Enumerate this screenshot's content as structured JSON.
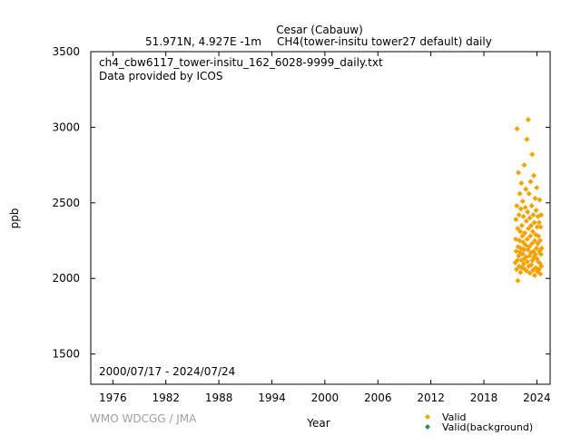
{
  "header": {
    "site_name": "Cesar (Cabauw)",
    "location": "51.971N, 4.927E -1m",
    "description": "CH4(tower-insitu tower27 default) daily"
  },
  "annotations": {
    "filename": "ch4_cbw6117_tower-insitu_162_6028-9999_daily.txt",
    "provider": "Data provided by ICOS",
    "period": "2000/07/17 - 2024/07/24"
  },
  "credit": "WMO WDCGG / JMA",
  "colors": {
    "valid": "#f5a100",
    "valid_background": "#2e8b57",
    "axis": "#000000"
  },
  "chart_data": {
    "type": "scatter",
    "xlabel": "Year",
    "ylabel": "ppb",
    "xlim": [
      1973.5,
      2025.5
    ],
    "ylim": [
      1300,
      3500
    ],
    "x_ticks": [
      1976,
      1982,
      1988,
      1994,
      2000,
      2006,
      2012,
      2018,
      2024
    ],
    "y_ticks": [
      1500,
      2000,
      2500,
      3000,
      3500
    ],
    "grid": false,
    "legend_position": "bottom-right",
    "series": [
      {
        "name": "Valid",
        "marker": "diamond",
        "points": [
          [
            2021.55,
            2105
          ],
          [
            2021.6,
            2260
          ],
          [
            2021.63,
            2390
          ],
          [
            2021.66,
            2180
          ],
          [
            2021.7,
            2060
          ],
          [
            2021.73,
            2480
          ],
          [
            2021.76,
            2990
          ],
          [
            2021.79,
            2120
          ],
          [
            2021.82,
            2330
          ],
          [
            2021.85,
            1985
          ],
          [
            2021.88,
            2210
          ],
          [
            2021.91,
            2700
          ],
          [
            2021.94,
            2150
          ],
          [
            2021.97,
            2420
          ],
          [
            2022.0,
            2080
          ],
          [
            2022.03,
            2250
          ],
          [
            2022.06,
            2560
          ],
          [
            2022.09,
            2175
          ],
          [
            2022.12,
            2310
          ],
          [
            2022.15,
            2040
          ],
          [
            2022.18,
            2460
          ],
          [
            2022.21,
            2200
          ],
          [
            2022.24,
            2630
          ],
          [
            2022.27,
            2120
          ],
          [
            2022.3,
            2350
          ],
          [
            2022.33,
            2070
          ],
          [
            2022.36,
            2280
          ],
          [
            2022.39,
            2510
          ],
          [
            2022.42,
            2160
          ],
          [
            2022.45,
            2240
          ],
          [
            2022.48,
            2410
          ],
          [
            2022.51,
            2095
          ],
          [
            2022.54,
            2190
          ],
          [
            2022.57,
            2750
          ],
          [
            2022.6,
            2130
          ],
          [
            2022.63,
            2300
          ],
          [
            2022.66,
            2060
          ],
          [
            2022.69,
            2470
          ],
          [
            2022.72,
            2220
          ],
          [
            2022.75,
            2590
          ],
          [
            2022.78,
            2140
          ],
          [
            2022.81,
            2380
          ],
          [
            2022.84,
            2050
          ],
          [
            2022.87,
            2920
          ],
          [
            2022.9,
            2260
          ],
          [
            2022.93,
            2110
          ],
          [
            2022.96,
            2440
          ],
          [
            2022.99,
            2190
          ],
          [
            2023.02,
            3050
          ],
          [
            2023.05,
            2330
          ],
          [
            2023.08,
            2080
          ],
          [
            2023.11,
            2560
          ],
          [
            2023.14,
            2210
          ],
          [
            2023.17,
            2150
          ],
          [
            2023.2,
            2400
          ],
          [
            2023.23,
            2035
          ],
          [
            2023.26,
            2280
          ],
          [
            2023.29,
            2640
          ],
          [
            2023.32,
            2170
          ],
          [
            2023.35,
            2350
          ],
          [
            2023.38,
            2090
          ],
          [
            2023.41,
            2480
          ],
          [
            2023.44,
            2230
          ],
          [
            2023.47,
            2820
          ],
          [
            2023.5,
            2120
          ],
          [
            2023.53,
            2310
          ],
          [
            2023.56,
            2055
          ],
          [
            2023.59,
            2420
          ],
          [
            2023.62,
            2180
          ],
          [
            2023.65,
            2680
          ],
          [
            2023.68,
            2140
          ],
          [
            2023.71,
            2370
          ],
          [
            2023.74,
            2020
          ],
          [
            2023.77,
            2250
          ],
          [
            2023.8,
            2530
          ],
          [
            2023.83,
            2160
          ],
          [
            2023.86,
            2290
          ],
          [
            2023.89,
            2070
          ],
          [
            2023.92,
            2450
          ],
          [
            2023.95,
            2200
          ],
          [
            2023.98,
            2600
          ],
          [
            2024.01,
            2130
          ],
          [
            2024.04,
            2340
          ],
          [
            2024.07,
            2045
          ],
          [
            2024.1,
            2230
          ],
          [
            2024.13,
            2410
          ],
          [
            2024.16,
            2110
          ],
          [
            2024.19,
            2280
          ],
          [
            2024.22,
            2060
          ],
          [
            2024.25,
            2370
          ],
          [
            2024.28,
            2180
          ],
          [
            2024.31,
            2520
          ],
          [
            2024.34,
            2100
          ],
          [
            2024.37,
            2250
          ],
          [
            2024.4,
            2030
          ],
          [
            2024.43,
            2340
          ],
          [
            2024.46,
            2160
          ],
          [
            2024.49,
            2420
          ],
          [
            2024.52,
            2080
          ],
          [
            2024.55,
            2200
          ]
        ]
      },
      {
        "name": "Valid(background)",
        "marker": "diamond",
        "points": []
      }
    ]
  }
}
